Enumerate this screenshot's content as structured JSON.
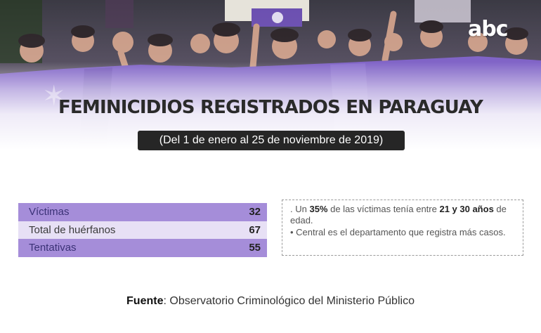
{
  "brand": {
    "logo_text": "abc"
  },
  "header": {
    "title": "FEMINICIDIOS REGISTRADOS EN PARAGUAY",
    "subtitle": "(Del 1 de enero al 25 de noviembre de 2019)"
  },
  "stats": [
    {
      "label": "Víctimas",
      "value": "32"
    },
    {
      "label": "Total de huérfanos",
      "value": "67"
    },
    {
      "label": "Tentativas",
      "value": "55"
    }
  ],
  "notes": {
    "line1_prefix": ". Un ",
    "line1_pct": "35%",
    "line1_middle": " de las víctimas tenía entre ",
    "line1_range": "21 y 30 años",
    "line1_suffix": " de edad.",
    "line2": "• Central es el departamento que registra más casos."
  },
  "footer": {
    "source_label": "Fuente",
    "source_text": ": Observatorio Criminológico del Ministerio Público"
  },
  "colors": {
    "banner_purple": "#7a5cc4",
    "row_dark": "#a58dd9",
    "row_light": "#e7e0f5",
    "subtitle_bg": "#262626"
  }
}
